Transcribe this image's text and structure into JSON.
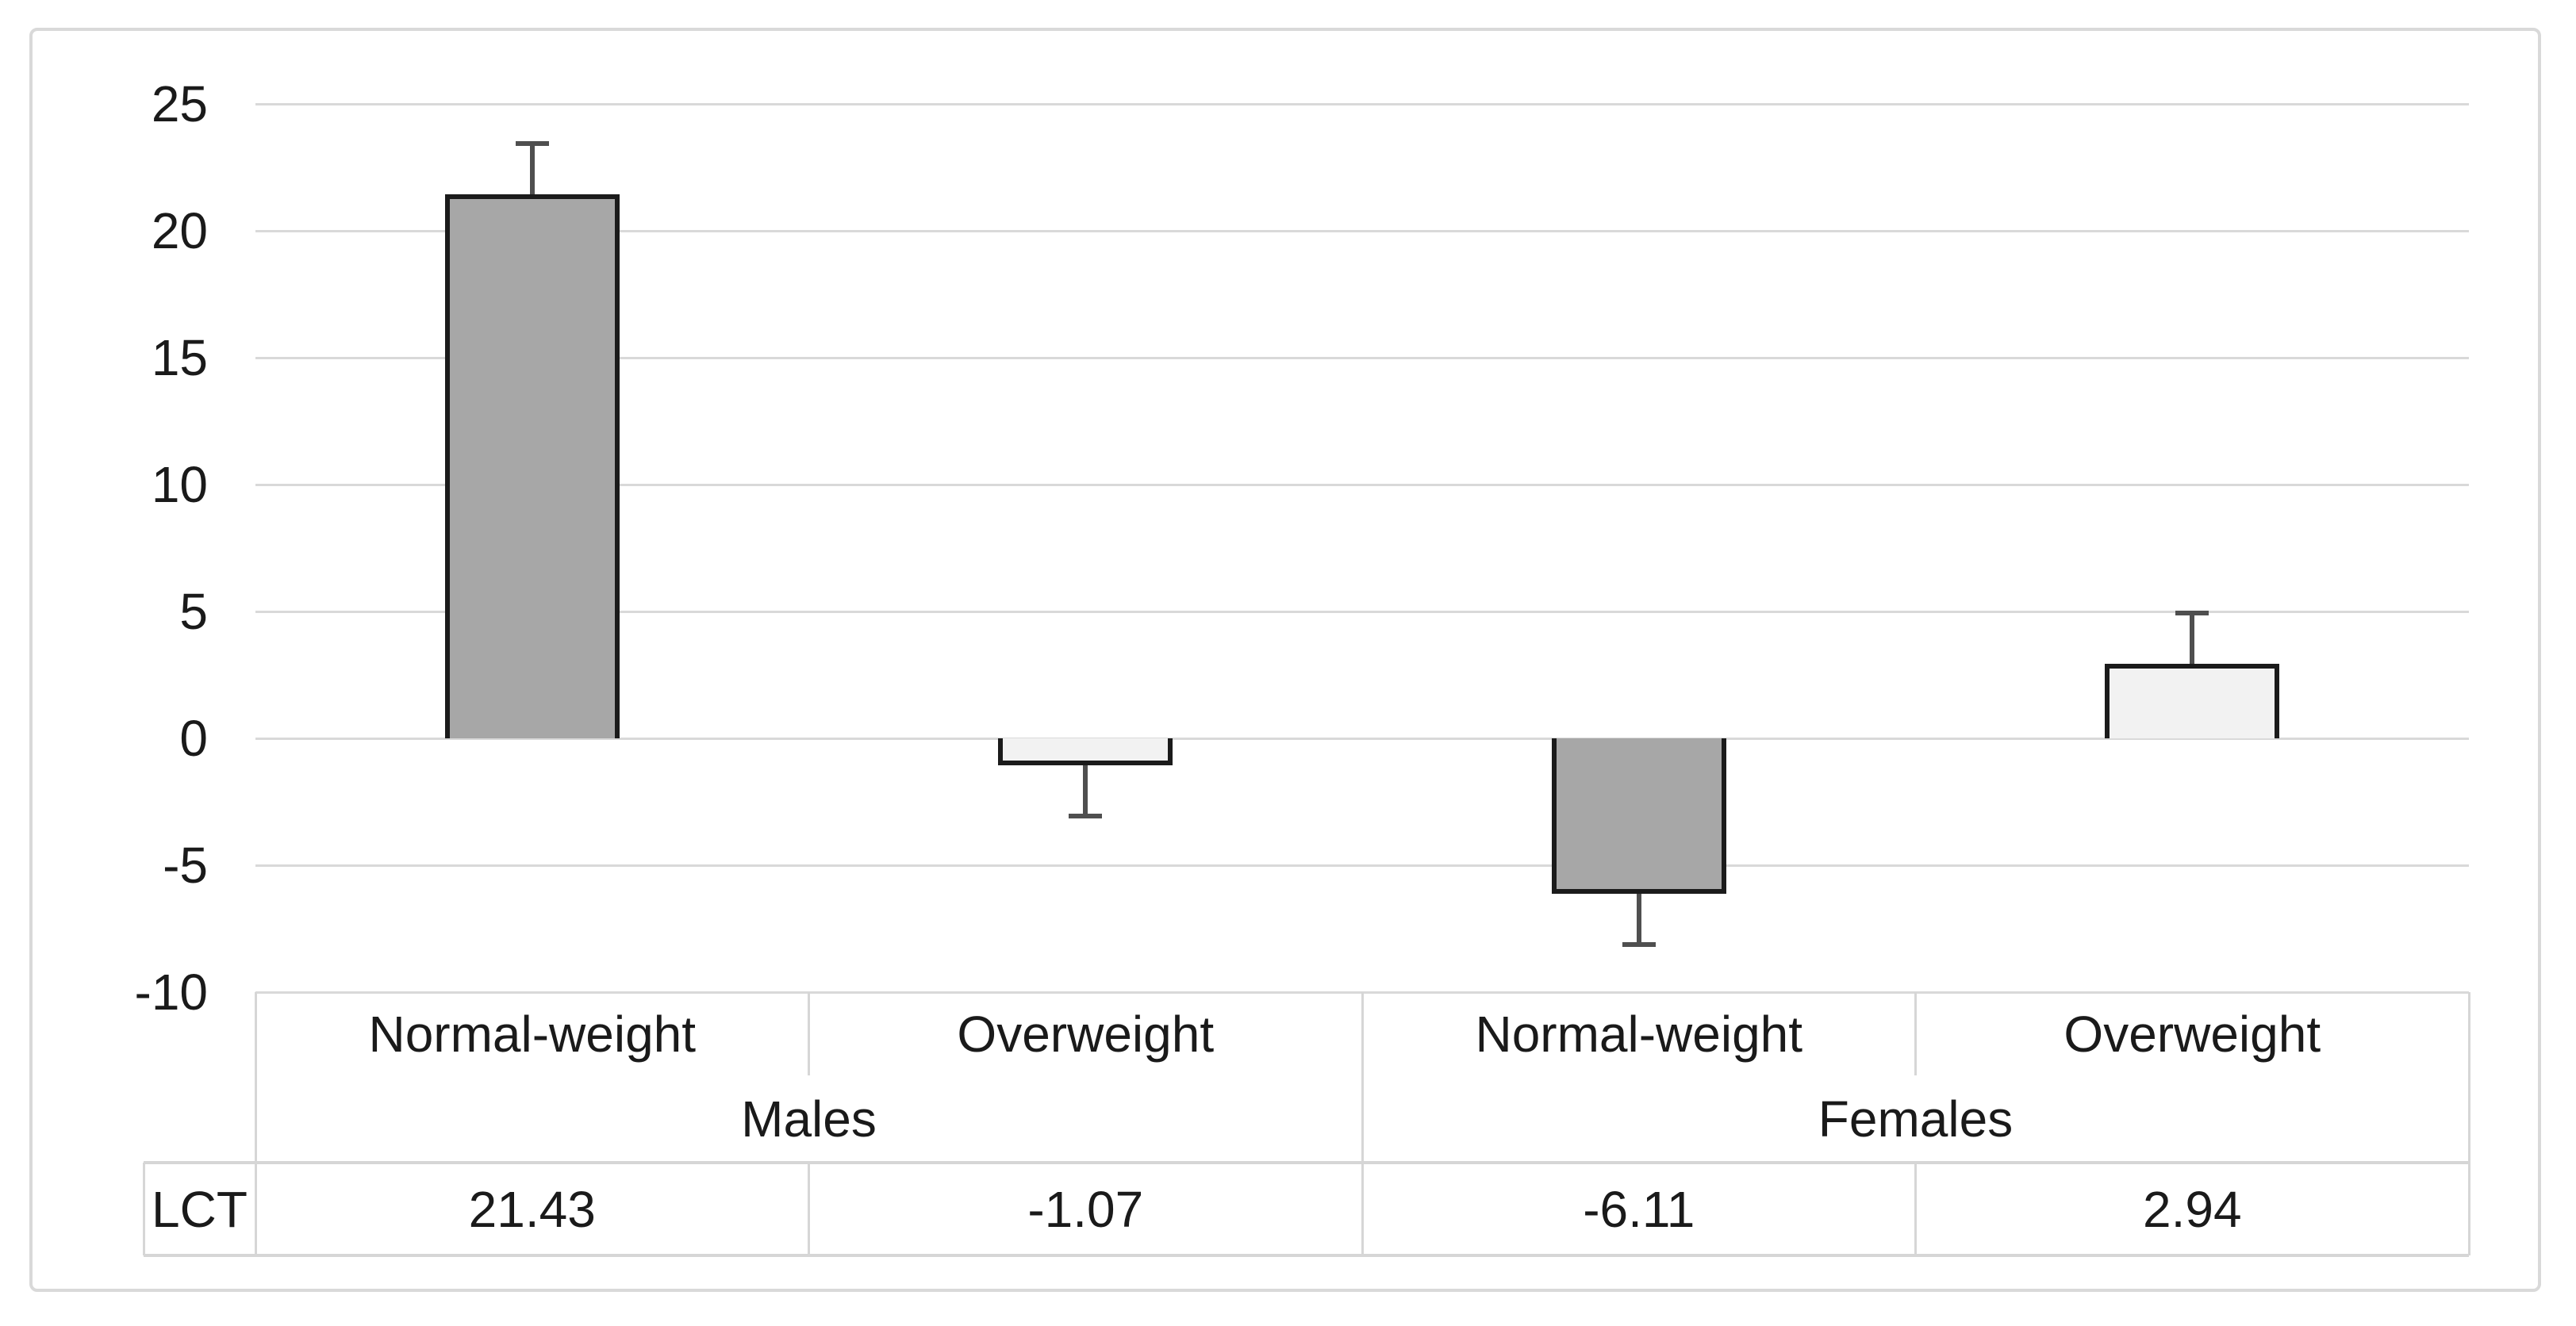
{
  "chart_data": {
    "type": "bar",
    "title": "",
    "xlabel": "",
    "ylabel": "",
    "categories": [
      "Normal-weight",
      "Overweight",
      "Normal-weight",
      "Overweight"
    ],
    "groups": [
      {
        "label": "Males",
        "start": 0,
        "end": 2
      },
      {
        "label": "Females",
        "start": 2,
        "end": 4
      }
    ],
    "series": [
      {
        "name": "LCT",
        "values": [
          21.43,
          -1.07,
          -6.11,
          2.94
        ]
      }
    ],
    "value_labels": [
      "21.43",
      "-1.07",
      "-6.11",
      "2.94"
    ],
    "error_bar": {
      "magnitude": 2.0,
      "direction": "outward"
    },
    "yticks": [
      25,
      20,
      15,
      10,
      5,
      0,
      -5,
      -10
    ],
    "ylim": [
      -10,
      25
    ],
    "grid": true,
    "legend_position": "none-table-row-header",
    "colors": {
      "bar_fills": [
        "#a7a7a7",
        "#f2f2f2",
        "#a7a7a7",
        "#f2f2f2"
      ],
      "bar_border": "#1b1b1b",
      "gridline": "#d9d9d9",
      "error_bar": "#4f4f4f",
      "table_border": "#d6d6d6",
      "frame_border": "#d9d9d9",
      "text": "#1a1a1a",
      "background": "#ffffff"
    }
  }
}
